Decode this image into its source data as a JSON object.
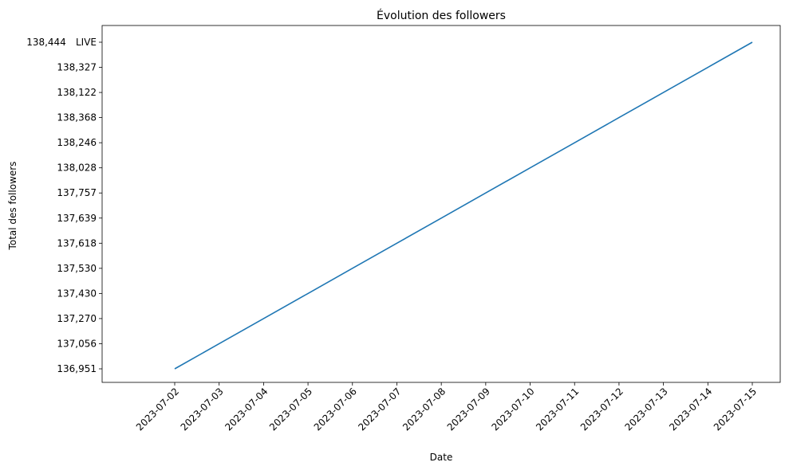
{
  "chart_data": {
    "type": "line",
    "title": "Évolution des followers",
    "xlabel": "Date",
    "ylabel": "Total des followers",
    "annotation": "138,444",
    "categories": [
      "2023-07-02",
      "2023-07-03",
      "2023-07-04",
      "2023-07-05",
      "2023-07-06",
      "2023-07-07",
      "2023-07-08",
      "2023-07-09",
      "2023-07-10",
      "2023-07-11",
      "2023-07-12",
      "2023-07-13",
      "2023-07-14",
      "2023-07-15"
    ],
    "y_categories": [
      "136,951",
      "137,056",
      "137,270",
      "137,430",
      "137,530",
      "137,618",
      "137,639",
      "137,757",
      "138,028",
      "138,246",
      "138,368",
      "138,122",
      "138,327",
      "LIVE"
    ],
    "series": [
      {
        "color": "#1f77b4",
        "values": [
          "136,951",
          "137,056",
          "137,270",
          "137,430",
          "137,530",
          "137,618",
          "137,639",
          "137,757",
          "138,028",
          "138,246",
          "138,368",
          "138,122",
          "138,327",
          "LIVE"
        ]
      }
    ]
  }
}
